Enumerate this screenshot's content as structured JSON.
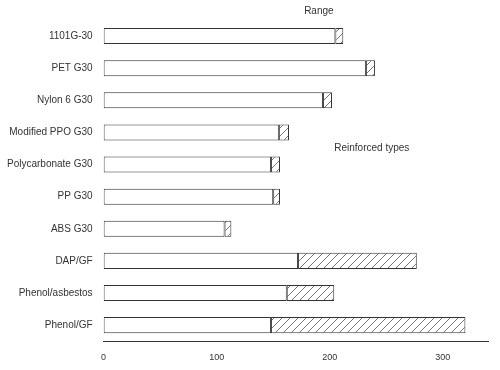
{
  "chart_data": {
    "type": "bar",
    "orientation": "horizontal",
    "categories": [
      "1101G-30",
      "PET G30",
      "Nylon 6 G30",
      "Modified PPO G30",
      "Polycarbonate G30",
      "PP G30",
      "ABS G30",
      "DAP/GF",
      "Phenol/asbestos",
      "Phenol/GF"
    ],
    "values": [
      205,
      232,
      194,
      155,
      148,
      150,
      107,
      172,
      162,
      148
    ],
    "range_high": [
      212,
      240,
      202,
      164,
      156,
      156,
      113,
      277,
      204,
      320
    ],
    "color": "#ffffff",
    "annotations": [
      "Range",
      "Reinforced types"
    ],
    "xlim": [
      0,
      340
    ],
    "xticks": [
      0,
      100,
      200,
      300
    ],
    "grid": false
  }
}
